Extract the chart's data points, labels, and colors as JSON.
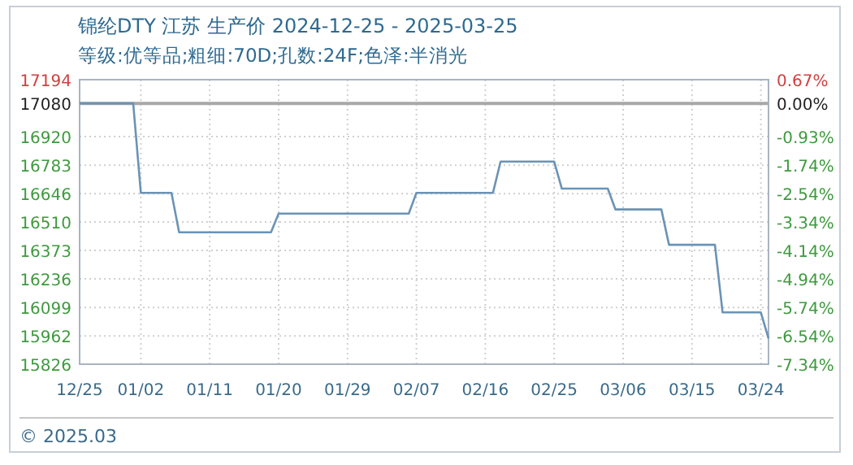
{
  "chart_data": {
    "type": "line",
    "title": "锦纶DTY 江苏 生产价 2024-12-25 - 2025-03-25",
    "subtitle": "等级:优等品;粗细:70D;孔数:24F;色泽:半消光",
    "annotations": [
      "© 2025.03"
    ],
    "x": [
      "2024-12-25",
      "2025-01-01",
      "2025-01-02",
      "2025-01-06",
      "2025-01-07",
      "2025-01-19",
      "2025-01-20",
      "2025-02-06",
      "2025-02-07",
      "2025-02-17",
      "2025-02-18",
      "2025-02-25",
      "2025-02-26",
      "2025-03-04",
      "2025-03-05",
      "2025-03-11",
      "2025-03-12",
      "2025-03-18",
      "2025-03-19",
      "2025-03-24",
      "2025-03-25"
    ],
    "series": [
      {
        "color": "#6b93b5",
        "values": [
          17080,
          17080,
          16650,
          16650,
          16460,
          16460,
          16550,
          16550,
          16650,
          16650,
          16800,
          16800,
          16670,
          16670,
          16570,
          16570,
          16400,
          16400,
          16075,
          16075,
          15950
        ]
      }
    ],
    "xlim": [
      "2024-12-25",
      "2025-03-25"
    ],
    "xticks": [
      {
        "value": "2024-12-25",
        "label": "12/25"
      },
      {
        "value": "2025-01-02",
        "label": "01/02"
      },
      {
        "value": "2025-01-11",
        "label": "01/11"
      },
      {
        "value": "2025-01-20",
        "label": "01/20"
      },
      {
        "value": "2025-01-29",
        "label": "01/29"
      },
      {
        "value": "2025-02-07",
        "label": "02/07"
      },
      {
        "value": "2025-02-16",
        "label": "02/16"
      },
      {
        "value": "2025-02-25",
        "label": "02/25"
      },
      {
        "value": "2025-03-06",
        "label": "03/06"
      },
      {
        "value": "2025-03-15",
        "label": "03/15"
      },
      {
        "value": "2025-03-24",
        "label": "03/24"
      }
    ],
    "ylim": [
      15826,
      17194
    ],
    "yticks": [
      15826,
      15962,
      16099,
      16236,
      16373,
      16510,
      16646,
      16783,
      16920,
      17080,
      17194
    ],
    "y2lim": [
      -7.34,
      0.67
    ],
    "y2ticks": [
      {
        "value": -7.34,
        "label": "-7.34%"
      },
      {
        "value": -6.54,
        "label": "-6.54%"
      },
      {
        "value": -5.74,
        "label": "-5.74%"
      },
      {
        "value": -4.94,
        "label": "-4.94%"
      },
      {
        "value": -4.14,
        "label": "-4.14%"
      },
      {
        "value": -3.34,
        "label": "-3.34%"
      },
      {
        "value": -2.54,
        "label": "-2.54%"
      },
      {
        "value": -1.74,
        "label": "-1.74%"
      },
      {
        "value": -0.93,
        "label": "-0.93%"
      },
      {
        "value": 0,
        "label": "0.00%"
      },
      {
        "value": 0.67,
        "label": "0.67%"
      }
    ],
    "ref_lines": [
      {
        "axis": "y",
        "value": 17080,
        "color": "#a8a8a8"
      }
    ],
    "grid": true
  }
}
